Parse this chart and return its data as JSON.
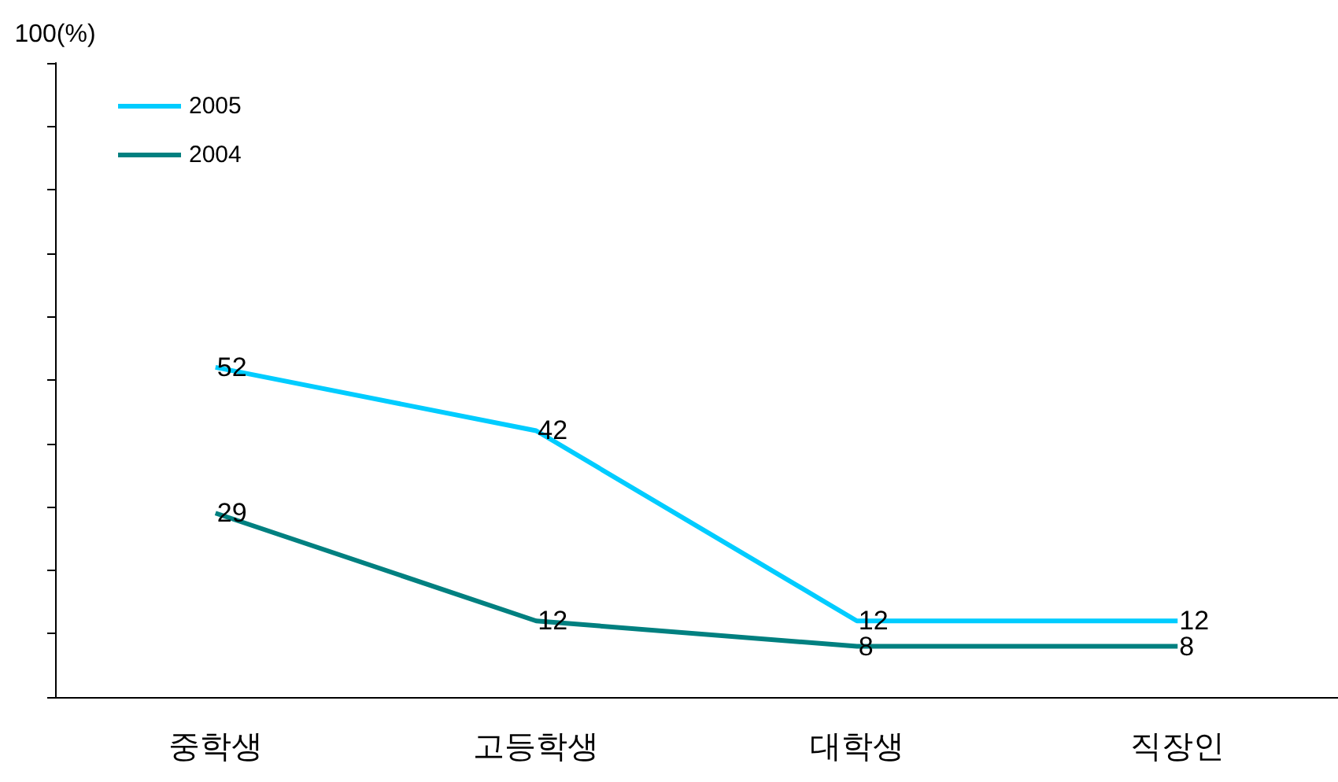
{
  "chart_data": {
    "type": "line",
    "ylabel": "100(%)",
    "categories": [
      "중학생",
      "고등학생",
      "대학생",
      "직장인"
    ],
    "series": [
      {
        "name": "2005",
        "color": "#00ccff",
        "values": [
          52,
          42,
          12,
          12
        ]
      },
      {
        "name": "2004",
        "color": "#008080",
        "values": [
          29,
          12,
          8,
          8
        ]
      }
    ],
    "ylim": [
      0,
      100
    ],
    "yticks": [
      {
        "value": 0,
        "label": null
      },
      {
        "value": 10,
        "label": null
      },
      {
        "value": 20,
        "label": null
      },
      {
        "value": 30,
        "label": null
      },
      {
        "value": 40,
        "label": null
      },
      {
        "value": 50,
        "label": null
      },
      {
        "value": 60,
        "label": null
      },
      {
        "value": 70,
        "label": null
      },
      {
        "value": 80,
        "label": null
      },
      {
        "value": 90,
        "label": null
      },
      {
        "value": 100,
        "label": null
      }
    ],
    "data_labels": true,
    "legend": "top left",
    "marker": "none",
    "grid": false,
    "line_style": "solid"
  }
}
